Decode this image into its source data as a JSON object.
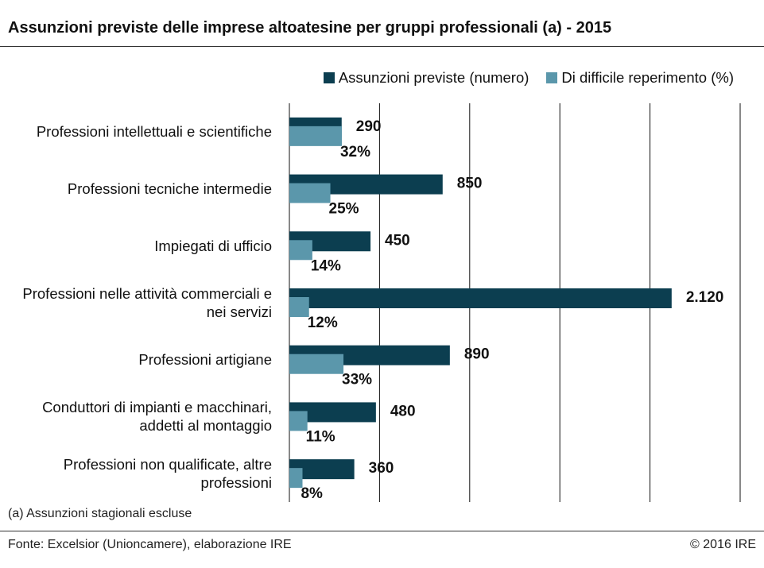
{
  "chart_data": {
    "type": "hbar",
    "title": "Assunzioni previste delle imprese altoatesine per gruppi professionali (a) - 2015",
    "categories": [
      "Professioni intellettuali e scientifiche",
      "Professioni tecniche intermedie",
      "Impiegati di ufficio",
      "Professioni nelle attività commerciali e nei servizi",
      "Professioni artigiane",
      "Conduttori di impianti e macchinari, addetti al montaggio",
      "Professioni non qualificate, altre professioni"
    ],
    "series": [
      {
        "name": "Assunzioni previste (numero)",
        "color": "#0c3e50",
        "values": [
          290,
          850,
          450,
          2120,
          890,
          480,
          360
        ],
        "value_labels": [
          "290",
          "850",
          "450",
          "2.120",
          "890",
          "480",
          "360"
        ]
      },
      {
        "name": "Di difficile reperimento (%)",
        "color": "#5b97ab",
        "axis": "y2",
        "values": [
          32,
          25,
          14,
          12,
          33,
          11,
          8
        ],
        "value_labels": [
          "32%",
          "25%",
          "14%",
          "12%",
          "33%",
          "11%",
          "8%"
        ]
      }
    ],
    "ylim": [
      0,
      2500
    ],
    "yticks": [
      0,
      500,
      1000,
      1500,
      2000,
      2500
    ],
    "y2lim": [
      0,
      275
    ],
    "grid": true,
    "legend": "top-right",
    "note": "(a) Assunzioni stagionali escluse",
    "source": "Fonte: Excelsior (Unioncamere), elaborazione IRE",
    "copyright": "© 2016 IRE"
  }
}
